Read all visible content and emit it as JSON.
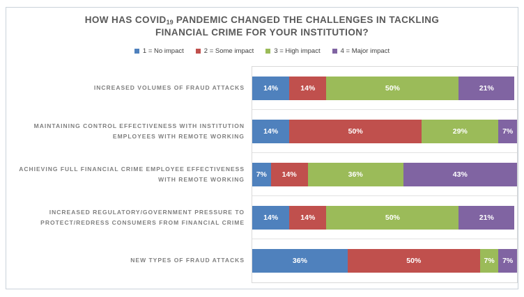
{
  "title": {
    "prefix": "HOW HAS COVID",
    "subscript": "19",
    "suffix": " PANDEMIC CHANGED THE CHALLENGES IN TACKLING FINANCIAL CRIME FOR YOUR INSTITUTION?"
  },
  "chart_data": {
    "type": "bar",
    "orientation": "horizontal",
    "stacked": true,
    "title": "HOW HAS COVID19 PANDEMIC CHANGED THE CHALLENGES IN TACKLING FINANCIAL CRIME FOR YOUR INSTITUTION?",
    "unit": "%",
    "xlim": [
      0,
      100
    ],
    "x_axis_visible": false,
    "gridlines": "horizontal-band-separators",
    "legend_position": "top-center",
    "data_label_format": "{value}%",
    "categories": [
      "INCREASED VOLUMES OF FRAUD ATTACKS",
      "MAINTAINING CONTROL EFFECTIVENESS WITH INSTITUTION EMPLOYEES WITH REMOTE WORKING",
      "ACHIEVING FULL FINANCIAL CRIME EMPLOYEE EFFECTIVENESS WITH REMOTE WORKING",
      "INCREASED REGULATORY/GOVERNMENT PRESSURE TO PROTECT/REDRESS CONSUMERS FROM FINANCIAL CRIME",
      "NEW TYPES OF FRAUD ATTACKS"
    ],
    "series": [
      {
        "key": "no-impact",
        "name": "1 = No impact",
        "color": "#4F81BD",
        "values": [
          14,
          14,
          7,
          14,
          36
        ]
      },
      {
        "key": "some-impact",
        "name": "2 = Some impact",
        "color": "#C0504D",
        "values": [
          14,
          50,
          14,
          14,
          50
        ]
      },
      {
        "key": "high-impact",
        "name": "3 = High impact",
        "color": "#9BBB59",
        "values": [
          50,
          29,
          36,
          50,
          7
        ]
      },
      {
        "key": "major-impact",
        "name": "4 = Major impact",
        "color": "#8064A2",
        "values": [
          21,
          7,
          43,
          21,
          7
        ]
      }
    ]
  },
  "colors": {
    "title_text": "#595959",
    "category_text": "#7F7F7F",
    "legend_text": "#404040",
    "bar_label_text": "#FFFFFF",
    "gridline": "#D9D9D9",
    "frame_border": "#C9D2DA",
    "background": "#FFFFFF"
  }
}
